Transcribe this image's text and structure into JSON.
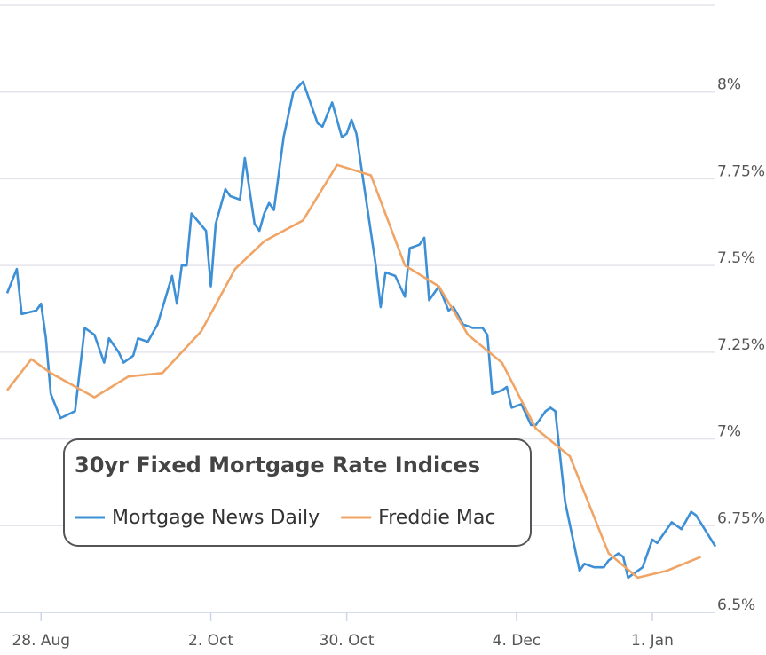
{
  "chart_data": {
    "type": "line",
    "legend": {
      "title": "30yr Fixed Mortgage Rate Indices",
      "position": "lower left"
    },
    "xlim": [
      "21. Aug",
      "14. Jan"
    ],
    "xticks": [
      "28. Aug",
      "2. Oct",
      "30. Oct",
      "4. Dec",
      "1. Jan"
    ],
    "ylim": [
      6.5,
      8.25
    ],
    "yticks": [
      {
        "value": 6.5,
        "label": "6.5%"
      },
      {
        "value": 6.75,
        "label": "6.75%"
      },
      {
        "value": 7,
        "label": "7%"
      },
      {
        "value": 7.25,
        "label": "7.25%"
      },
      {
        "value": 7.5,
        "label": "7.5%"
      },
      {
        "value": 7.75,
        "label": "7.75%"
      },
      {
        "value": 8,
        "label": "8%"
      }
    ],
    "grid": true,
    "series": [
      {
        "name": "Mortgage News Daily",
        "color": "#3d8fd6",
        "x": [
          "21. Aug",
          "23. Aug",
          "24. Aug",
          "27. Aug",
          "28. Aug",
          "29. Aug",
          "30. Aug",
          "1. Sep",
          "4. Sep",
          "6. Sep",
          "8. Sep",
          "10. Sep",
          "11. Sep",
          "13. Sep",
          "14. Sep",
          "16. Sep",
          "17. Sep",
          "19. Sep",
          "21. Sep",
          "24. Sep",
          "25. Sep",
          "26. Sep",
          "27. Sep",
          "28. Sep",
          "1. Oct",
          "2. Oct",
          "3. Oct",
          "5. Oct",
          "6. Oct",
          "8. Oct",
          "9. Oct",
          "11. Oct",
          "12. Oct",
          "13. Oct",
          "14. Oct",
          "15. Oct",
          "17. Oct",
          "19. Oct",
          "21. Oct",
          "24. Oct",
          "25. Oct",
          "27. Oct",
          "29. Oct",
          "30. Oct",
          "31. Oct",
          "1. Nov",
          "3. Nov",
          "5. Nov",
          "6. Nov",
          "7. Nov",
          "9. Nov",
          "11. Nov",
          "12. Nov",
          "14. Nov",
          "15. Nov",
          "16. Nov",
          "18. Nov",
          "20. Nov",
          "21. Nov",
          "23. Nov",
          "25. Nov",
          "27. Nov",
          "28. Nov",
          "29. Nov",
          "1. Dec",
          "2. Dec",
          "3. Dec",
          "5. Dec",
          "7. Dec",
          "8. Dec",
          "10. Dec",
          "11. Dec",
          "12. Dec",
          "14. Dec",
          "17. Dec",
          "18. Dec",
          "20. Dec",
          "22. Dec",
          "23. Dec",
          "25. Dec",
          "26. Dec",
          "27. Dec",
          "30. Dec",
          "1. Jan",
          "2. Jan",
          "5. Jan",
          "7. Jan",
          "9. Jan",
          "10. Jan",
          "14. Jan"
        ],
        "values": [
          7.42,
          7.49,
          7.36,
          7.37,
          7.39,
          7.29,
          7.13,
          7.06,
          7.08,
          7.32,
          7.3,
          7.22,
          7.29,
          7.25,
          7.22,
          7.24,
          7.29,
          7.28,
          7.33,
          7.47,
          7.39,
          7.5,
          7.5,
          7.65,
          7.6,
          7.44,
          7.62,
          7.72,
          7.7,
          7.69,
          7.81,
          7.62,
          7.6,
          7.65,
          7.68,
          7.66,
          7.87,
          8.0,
          8.03,
          7.91,
          7.9,
          7.97,
          7.87,
          7.88,
          7.92,
          7.88,
          7.69,
          7.5,
          7.38,
          7.48,
          7.47,
          7.41,
          7.55,
          7.56,
          7.58,
          7.4,
          7.44,
          7.37,
          7.38,
          7.33,
          7.32,
          7.32,
          7.3,
          7.13,
          7.14,
          7.15,
          7.09,
          7.1,
          7.04,
          7.04,
          7.08,
          7.09,
          7.08,
          6.82,
          6.62,
          6.64,
          6.63,
          6.63,
          6.65,
          6.67,
          6.66,
          6.6,
          6.63,
          6.71,
          6.7,
          6.76,
          6.74,
          6.79,
          6.78,
          6.69
        ]
      },
      {
        "name": "Freddie Mac",
        "color": "#f0a566",
        "x": [
          "21. Aug",
          "26. Aug",
          "30. Aug",
          "8. Sep",
          "15. Sep",
          "22. Sep",
          "30. Sep",
          "7. Oct",
          "13. Oct",
          "21. Oct",
          "28. Oct",
          "4. Nov",
          "11. Nov",
          "18. Nov",
          "24. Nov",
          "1. Dec",
          "8. Dec",
          "15. Dec",
          "23. Dec",
          "29. Dec",
          "4. Jan",
          "11. Jan"
        ],
        "values": [
          7.14,
          7.23,
          7.19,
          7.12,
          7.18,
          7.19,
          7.31,
          7.49,
          7.57,
          7.63,
          7.79,
          7.76,
          7.5,
          7.44,
          7.3,
          7.22,
          7.03,
          6.95,
          6.67,
          6.6,
          6.62,
          6.66
        ]
      }
    ]
  }
}
